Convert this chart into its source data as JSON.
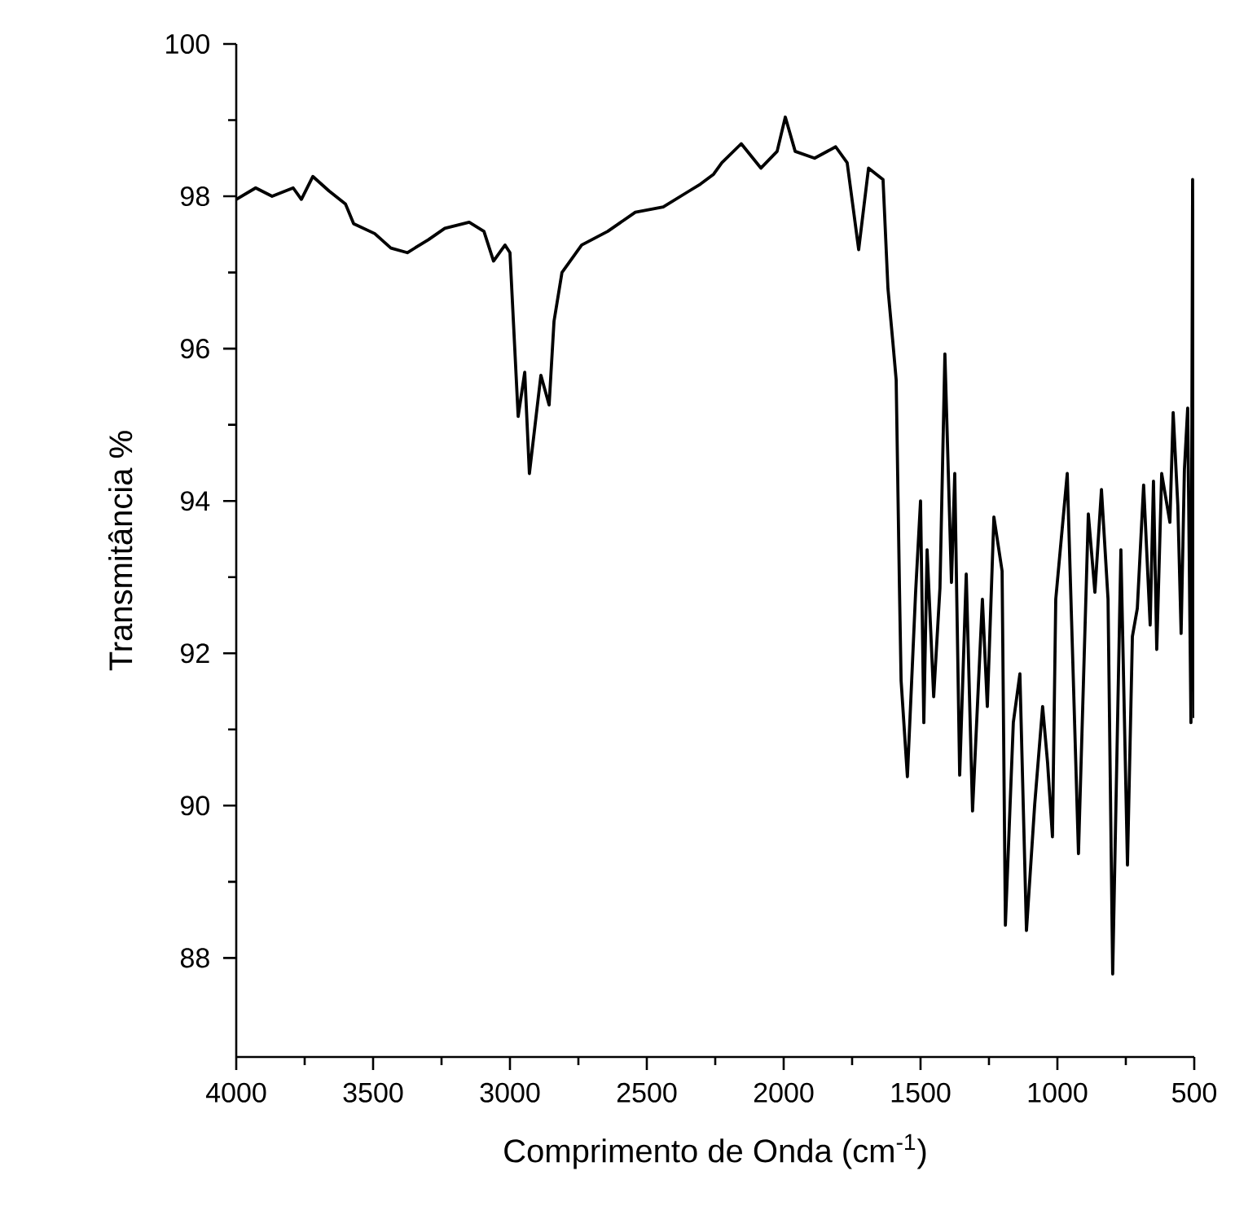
{
  "chart_data": {
    "type": "line",
    "xlabel": "Comprimento de Onda (cm$^{-1}$)",
    "ylabel": "Transmitância %",
    "xlim": [
      4000,
      500
    ],
    "ylim": [
      86.7,
      100
    ],
    "xticks": [
      4000,
      3500,
      3000,
      2500,
      2000,
      1500,
      1000,
      500
    ],
    "yticks": [
      88,
      90,
      92,
      94,
      96,
      98,
      100
    ],
    "line_style": "solid",
    "series": [
      {
        "color": "#000000",
        "x": [
          4000,
          3929,
          3869,
          3792,
          3762,
          3720,
          3661,
          3601,
          3571,
          3494,
          3435,
          3375,
          3298,
          3238,
          3149,
          3095,
          3060,
          3018,
          3000,
          2970,
          2946,
          2929,
          2887,
          2857,
          2839,
          2810,
          2738,
          2643,
          2542,
          2440,
          2345,
          2304,
          2256,
          2226,
          2155,
          2083,
          2024,
          1994,
          1958,
          1887,
          1810,
          1768,
          1726,
          1690,
          1637,
          1619,
          1601,
          1589,
          1577,
          1571,
          1548,
          1518,
          1500,
          1488,
          1476,
          1452,
          1429,
          1411,
          1387,
          1375,
          1357,
          1333,
          1310,
          1274,
          1256,
          1232,
          1202,
          1190,
          1161,
          1137,
          1113,
          1083,
          1054,
          1036,
          1018,
          1006,
          964,
          923,
          887,
          863,
          839,
          815,
          798,
          768,
          744,
          726,
          708,
          685,
          661,
          649,
          637,
          619,
          589,
          577,
          560,
          548,
          536,
          524,
          512,
          506,
          500
        ],
        "values": [
          97.96,
          98.11,
          98.0,
          98.11,
          97.96,
          98.26,
          98.07,
          97.9,
          97.64,
          97.51,
          97.32,
          97.26,
          97.43,
          97.58,
          97.66,
          97.54,
          97.15,
          97.36,
          97.26,
          95.11,
          95.69,
          94.36,
          95.65,
          95.26,
          96.36,
          97.0,
          97.36,
          97.54,
          97.79,
          97.86,
          98.07,
          98.16,
          98.29,
          98.44,
          98.69,
          98.37,
          98.59,
          99.04,
          98.59,
          98.5,
          98.65,
          98.44,
          97.3,
          98.37,
          98.22,
          96.79,
          96.08,
          95.59,
          92.86,
          91.64,
          90.38,
          92.8,
          94.0,
          91.09,
          93.36,
          91.43,
          92.86,
          95.93,
          92.93,
          94.36,
          90.4,
          93.04,
          89.93,
          92.71,
          91.3,
          93.79,
          93.08,
          88.43,
          91.09,
          91.73,
          88.36,
          90.01,
          91.3,
          90.57,
          89.59,
          92.71,
          94.36,
          89.37,
          93.83,
          92.8,
          94.15,
          92.71,
          87.79,
          93.36,
          89.22,
          92.22,
          92.59,
          94.21,
          92.37,
          94.26,
          92.05,
          94.36,
          93.72,
          95.16,
          93.94,
          92.26,
          94.41,
          95.22,
          91.09,
          98.22,
          91.15
        ]
      }
    ]
  }
}
